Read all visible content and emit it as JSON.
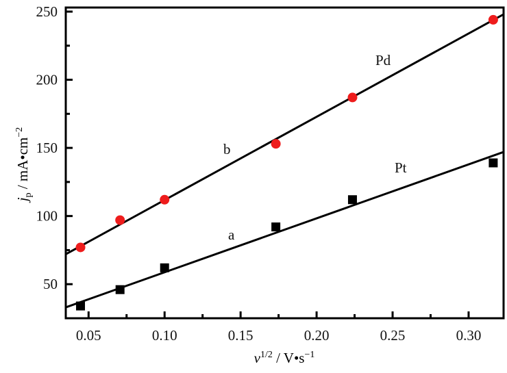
{
  "chart_data": {
    "type": "scatter",
    "xlabel": "v^1/2 / V•s^-1",
    "xlabel_parts": {
      "main": "v",
      "sup": "1/2",
      "unit": " / V•s",
      "unit_sup": "−1"
    },
    "ylabel": "j_p / mA•cm^-2",
    "ylabel_parts": {
      "main": "j",
      "sub": "p",
      "unit": " / mA•cm",
      "unit_sup": "−2"
    },
    "xlim": [
      0.035,
      0.323
    ],
    "ylim": [
      25,
      253
    ],
    "x_ticks": [
      0.05,
      0.1,
      0.15,
      0.2,
      0.25,
      0.3
    ],
    "x_tick_labels": [
      "0.05",
      "0.10",
      "0.15",
      "0.20",
      "0.25",
      "0.30"
    ],
    "y_ticks": [
      50,
      100,
      150,
      200,
      250
    ],
    "y_tick_labels": [
      "50",
      "100",
      "150",
      "200",
      "250"
    ],
    "grid": false,
    "series": [
      {
        "name": "Pd",
        "curve_label": "b",
        "marker": "circle",
        "color": "#ee1c1c",
        "x": [
          0.0447,
          0.0707,
          0.1,
          0.1732,
          0.2236,
          0.3162
        ],
        "y": [
          77,
          97,
          112,
          153,
          187,
          244
        ],
        "fit": {
          "x": [
            0.035,
            0.323
          ],
          "y": [
            72,
            248
          ]
        }
      },
      {
        "name": "Pt",
        "curve_label": "a",
        "marker": "square",
        "color": "#000000",
        "x": [
          0.0447,
          0.0707,
          0.1,
          0.1732,
          0.2236,
          0.3162
        ],
        "y": [
          34,
          46,
          62,
          92,
          112,
          139
        ],
        "fit": {
          "x": [
            0.035,
            0.323
          ],
          "y": [
            33,
            147
          ]
        }
      }
    ]
  }
}
